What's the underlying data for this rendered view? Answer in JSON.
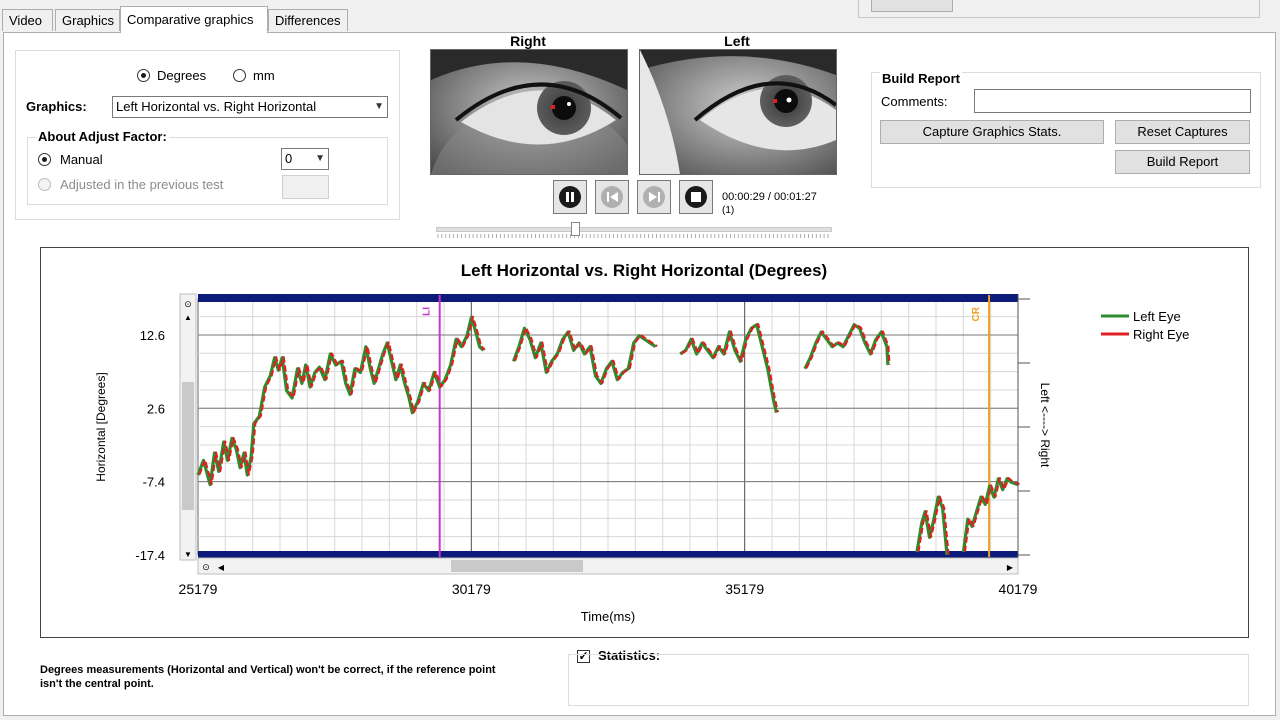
{
  "tabs": [
    {
      "label": "Video",
      "active": false
    },
    {
      "label": "Graphics",
      "active": false
    },
    {
      "label": "Comparative graphics",
      "active": true
    },
    {
      "label": "Differences",
      "active": false
    }
  ],
  "units": {
    "degrees": "Degrees",
    "mm": "mm",
    "selected": "degrees"
  },
  "graphics": {
    "label": "Graphics:",
    "selected": "Left Horizontal vs. Right Horizontal"
  },
  "adjust": {
    "title": "About Adjust Factor:",
    "manual": "Manual",
    "previous": "Adjusted in the previous test",
    "factor_value": "0"
  },
  "eyes": {
    "right_label": "Right",
    "left_label": "Left",
    "right_color": "#e02020",
    "left_color": "#2e8b2e"
  },
  "player": {
    "time": "00:00:29 / 00:01:27",
    "sub": "(1)",
    "progress": 0.345
  },
  "report": {
    "title": "Build Report",
    "comments_label": "Comments:",
    "comments_value": "",
    "capture_btn": "Capture Graphics  Stats.",
    "reset_btn": "Reset Captures",
    "build_btn": "Build Report"
  },
  "chart_data": {
    "type": "line",
    "title": "Left Horizontal vs. Right Horizontal (Degrees)",
    "ylabel": "Horizontal [Degrees]",
    "xlabel": "Time(ms)",
    "right_label": "Left <----> Right",
    "xlim": [
      25179,
      40179
    ],
    "ylim": [
      -17.4,
      17.5
    ],
    "xticks": [
      "25179",
      "30179",
      "35179",
      "40179"
    ],
    "yticks": [
      "12.6",
      "2.6",
      "-7.4",
      "-17.4"
    ],
    "markers": [
      {
        "label": "LI",
        "x": 29600,
        "color": "#cc33cc"
      },
      {
        "label": "CR",
        "x": 39650,
        "color": "#f0a020"
      }
    ],
    "series": [
      {
        "name": "Left Eye",
        "color": "#2e8b2e"
      },
      {
        "name": "Right Eye",
        "color": "#e02020"
      }
    ],
    "segments": [
      [
        [
          25179,
          -6.5
        ],
        [
          25280,
          -4.5
        ],
        [
          25400,
          -7.8
        ],
        [
          25480,
          -3.5
        ],
        [
          25560,
          -6.0
        ],
        [
          25650,
          -2.0
        ],
        [
          25720,
          -4.5
        ],
        [
          25800,
          -1.5
        ],
        [
          25880,
          -3.0
        ],
        [
          25950,
          -5.5
        ],
        [
          26020,
          -3.5
        ],
        [
          26080,
          -6.5
        ],
        [
          26150,
          -4.0
        ],
        [
          26200,
          0.5
        ],
        [
          26300,
          1.5
        ],
        [
          26400,
          5.5
        ],
        [
          26500,
          7.0
        ],
        [
          26580,
          9.5
        ],
        [
          26650,
          7.8
        ],
        [
          26720,
          9.5
        ],
        [
          26800,
          5.0
        ],
        [
          26900,
          4.0
        ],
        [
          27000,
          8.0
        ],
        [
          27080,
          6.0
        ],
        [
          27150,
          8.5
        ],
        [
          27230,
          5.5
        ],
        [
          27320,
          7.5
        ],
        [
          27400,
          8.2
        ],
        [
          27500,
          6.5
        ],
        [
          27600,
          10.0
        ],
        [
          27700,
          8.5
        ],
        [
          27800,
          9.0
        ],
        [
          27880,
          6.0
        ],
        [
          27960,
          4.5
        ],
        [
          28050,
          8.0
        ],
        [
          28150,
          7.5
        ],
        [
          28250,
          11.0
        ],
        [
          28330,
          8.0
        ],
        [
          28400,
          6.0
        ],
        [
          28480,
          8.0
        ],
        [
          28560,
          10.0
        ],
        [
          28640,
          11.5
        ],
        [
          28720,
          9.0
        ],
        [
          28800,
          6.5
        ],
        [
          28880,
          8.5
        ],
        [
          28960,
          6.0
        ],
        [
          29040,
          4.0
        ],
        [
          29100,
          2.0
        ],
        [
          29200,
          3.5
        ],
        [
          29300,
          6.0
        ],
        [
          29400,
          5.0
        ],
        [
          29500,
          7.5
        ],
        [
          29600,
          5.5
        ],
        [
          29700,
          6.5
        ],
        [
          29800,
          8.5
        ],
        [
          29900,
          12.0
        ],
        [
          30000,
          11.0
        ],
        [
          30100,
          12.5
        ],
        [
          30180,
          15.0
        ],
        [
          30260,
          13.0
        ],
        [
          30330,
          11.0
        ],
        [
          30400,
          10.5
        ]
      ],
      [
        [
          30950,
          9.0
        ],
        [
          31050,
          11.0
        ],
        [
          31150,
          13.5
        ],
        [
          31250,
          12.0
        ],
        [
          31350,
          9.5
        ],
        [
          31450,
          11.5
        ],
        [
          31550,
          7.5
        ],
        [
          31650,
          9.0
        ],
        [
          31750,
          10.0
        ],
        [
          31850,
          12.0
        ],
        [
          31950,
          13.0
        ],
        [
          32050,
          10.5
        ],
        [
          32150,
          11.5
        ],
        [
          32250,
          10.0
        ],
        [
          32350,
          11.0
        ],
        [
          32450,
          7.0
        ],
        [
          32550,
          6.0
        ],
        [
          32650,
          8.0
        ],
        [
          32750,
          9.0
        ],
        [
          32850,
          6.5
        ],
        [
          32950,
          7.5
        ],
        [
          33050,
          8.0
        ],
        [
          33150,
          11.5
        ],
        [
          33250,
          12.5
        ],
        [
          33350,
          12.0
        ],
        [
          33450,
          11.5
        ],
        [
          33550,
          11.0
        ]
      ],
      [
        [
          34000,
          10.0
        ],
        [
          34100,
          10.5
        ],
        [
          34200,
          12.0
        ],
        [
          34300,
          10.0
        ],
        [
          34400,
          11.5
        ],
        [
          34500,
          10.5
        ],
        [
          34600,
          9.5
        ],
        [
          34700,
          11.0
        ],
        [
          34800,
          10.0
        ],
        [
          34900,
          13.0
        ],
        [
          35000,
          10.5
        ],
        [
          35100,
          9.0
        ],
        [
          35200,
          12.0
        ],
        [
          35300,
          13.5
        ],
        [
          35400,
          14.0
        ],
        [
          35500,
          11.0
        ],
        [
          35600,
          8.0
        ],
        [
          35700,
          4.0
        ],
        [
          35760,
          2.0
        ]
      ],
      [
        [
          36280,
          8.0
        ],
        [
          36380,
          9.5
        ],
        [
          36480,
          11.5
        ],
        [
          36580,
          13.0
        ],
        [
          36680,
          12.0
        ],
        [
          36780,
          11.0
        ],
        [
          36880,
          11.5
        ],
        [
          36980,
          11.0
        ],
        [
          37080,
          12.5
        ],
        [
          37180,
          14.0
        ],
        [
          37280,
          13.5
        ],
        [
          37380,
          11.5
        ],
        [
          37480,
          10.0
        ],
        [
          37580,
          12.0
        ],
        [
          37680,
          13.0
        ],
        [
          37780,
          11.0
        ],
        [
          37800,
          8.5
        ]
      ],
      [
        [
          38330,
          -17.0
        ],
        [
          38420,
          -13.0
        ],
        [
          38480,
          -11.5
        ],
        [
          38560,
          -15.0
        ],
        [
          38640,
          -12.5
        ],
        [
          38720,
          -9.5
        ],
        [
          38800,
          -11.0
        ],
        [
          38880,
          -17.4
        ]
      ],
      [
        [
          39180,
          -17.0
        ],
        [
          39260,
          -12.5
        ],
        [
          39340,
          -13.5
        ],
        [
          39420,
          -11.5
        ],
        [
          39500,
          -9.5
        ],
        [
          39580,
          -10.5
        ],
        [
          39660,
          -8.0
        ],
        [
          39740,
          -9.5
        ],
        [
          39820,
          -7.0
        ],
        [
          39900,
          -8.5
        ],
        [
          39980,
          -7.0
        ],
        [
          40060,
          -7.5
        ],
        [
          40179,
          -7.8
        ]
      ]
    ]
  },
  "note": "Degrees measurements (Horizontal and Vertical) won't be correct, if the reference point isn't the central point.",
  "statistics": {
    "label": "Statistics:",
    "checked": true
  }
}
